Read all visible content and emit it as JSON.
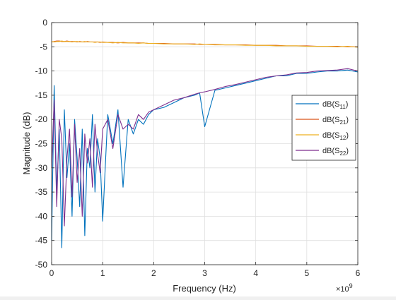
{
  "colors": {
    "axis": "#262626",
    "grid": "#dfdfdf",
    "background": "#ffffff",
    "series": [
      "#0072BD",
      "#D95319",
      "#EDB120",
      "#7E2F8E"
    ]
  },
  "chart_data": {
    "type": "line",
    "xlabel": "Frequency (Hz)",
    "ylabel": "Magnitude (dB)",
    "x_exponent_base": "×10",
    "x_exponent_power": "9",
    "xlim": [
      0,
      6
    ],
    "ylim": [
      -50,
      0
    ],
    "x_unit_multiplier": 1000000000.0,
    "xticks": [
      0,
      1,
      2,
      3,
      4,
      5,
      6
    ],
    "xtick_labels": [
      "0",
      "1",
      "2",
      "3",
      "4",
      "5",
      "6"
    ],
    "yticks": [
      0,
      -5,
      -10,
      -15,
      -20,
      -25,
      -30,
      -35,
      -40,
      -45,
      -50
    ],
    "ytick_labels": [
      "0",
      "-5",
      "-10",
      "-15",
      "-20",
      "-25",
      "-30",
      "-35",
      "-40",
      "-45",
      "-50"
    ],
    "grid": true,
    "legend_position": "right",
    "x": [
      0,
      0.05,
      0.1,
      0.15,
      0.2,
      0.25,
      0.3,
      0.35,
      0.4,
      0.45,
      0.5,
      0.55,
      0.6,
      0.65,
      0.7,
      0.75,
      0.8,
      0.85,
      0.9,
      0.95,
      1.0,
      1.1,
      1.2,
      1.3,
      1.4,
      1.5,
      1.6,
      1.7,
      1.8,
      1.9,
      2.0,
      2.2,
      2.4,
      2.6,
      2.8,
      2.9,
      3.0,
      3.2,
      3.4,
      3.6,
      3.8,
      4.0,
      4.2,
      4.4,
      4.6,
      4.8,
      5.0,
      5.2,
      5.4,
      5.6,
      5.8,
      6.0
    ],
    "series": [
      {
        "name_prefix": "dB(S",
        "name_sub": "11",
        "name_suffix": ")",
        "values": [
          -45,
          -13,
          -35,
          -22,
          -46.5,
          -18,
          -32,
          -25,
          -40,
          -20,
          -28,
          -38,
          -22,
          -44,
          -26,
          -30,
          -19,
          -35,
          -24,
          -28,
          -41,
          -19,
          -25,
          -18,
          -34,
          -20,
          -23,
          -20,
          -21,
          -19,
          -18,
          -17.5,
          -16.5,
          -15.5,
          -15,
          -14.5,
          -21.5,
          -14,
          -13.5,
          -13,
          -12.5,
          -12,
          -11.5,
          -11,
          -11,
          -10.5,
          -10.5,
          -10.2,
          -10,
          -10,
          -9.8,
          -10.2
        ]
      },
      {
        "name_prefix": "dB(S",
        "name_sub": "21",
        "name_suffix": ")",
        "values": [
          -4,
          -3.9,
          -3.8,
          -3.8,
          -3.9,
          -3.9,
          -3.8,
          -3.9,
          -3.9,
          -3.9,
          -4.0,
          -3.9,
          -4.0,
          -4.0,
          -3.9,
          -4.0,
          -4.0,
          -4.0,
          -4.0,
          -4.1,
          -4.0,
          -4.1,
          -4.1,
          -4.2,
          -4.1,
          -4.2,
          -4.2,
          -4.2,
          -4.2,
          -4.3,
          -4.3,
          -4.3,
          -4.4,
          -4.4,
          -4.4,
          -4.5,
          -4.5,
          -4.5,
          -4.6,
          -4.6,
          -4.6,
          -4.7,
          -4.7,
          -4.7,
          -4.8,
          -4.8,
          -4.8,
          -4.9,
          -4.9,
          -4.9,
          -5.0,
          -5.0
        ]
      },
      {
        "name_prefix": "dB(S",
        "name_sub": "12",
        "name_suffix": ")",
        "values": [
          -3.9,
          -4.0,
          -3.9,
          -3.9,
          -3.8,
          -3.9,
          -3.9,
          -3.9,
          -4.0,
          -3.9,
          -3.9,
          -4.0,
          -4.0,
          -3.9,
          -4.0,
          -4.0,
          -4.0,
          -4.1,
          -4.0,
          -4.0,
          -4.1,
          -4.1,
          -4.2,
          -4.1,
          -4.2,
          -4.2,
          -4.2,
          -4.3,
          -4.2,
          -4.3,
          -4.3,
          -4.4,
          -4.4,
          -4.4,
          -4.5,
          -4.4,
          -4.5,
          -4.6,
          -4.6,
          -4.6,
          -4.7,
          -4.7,
          -4.7,
          -4.8,
          -4.8,
          -4.8,
          -4.9,
          -4.9,
          -4.9,
          -5.0,
          -4.9,
          -5.1
        ]
      },
      {
        "name_prefix": "dB(S",
        "name_sub": "22",
        "name_suffix": ")",
        "values": [
          -30,
          -16,
          -38,
          -20,
          -24,
          -42,
          -28,
          -22,
          -36,
          -21,
          -33,
          -26,
          -40,
          -23,
          -29,
          -24,
          -34,
          -21,
          -27,
          -31,
          -22,
          -20,
          -26,
          -19,
          -22,
          -21,
          -22,
          -19,
          -20,
          -18.5,
          -18,
          -17,
          -16,
          -15.5,
          -14.8,
          -14.5,
          -14.3,
          -13.8,
          -13.2,
          -12.8,
          -12.3,
          -11.8,
          -11.3,
          -11,
          -10.8,
          -10.4,
          -10.3,
          -10,
          -9.9,
          -9.8,
          -9.5,
          -10
        ]
      }
    ]
  }
}
